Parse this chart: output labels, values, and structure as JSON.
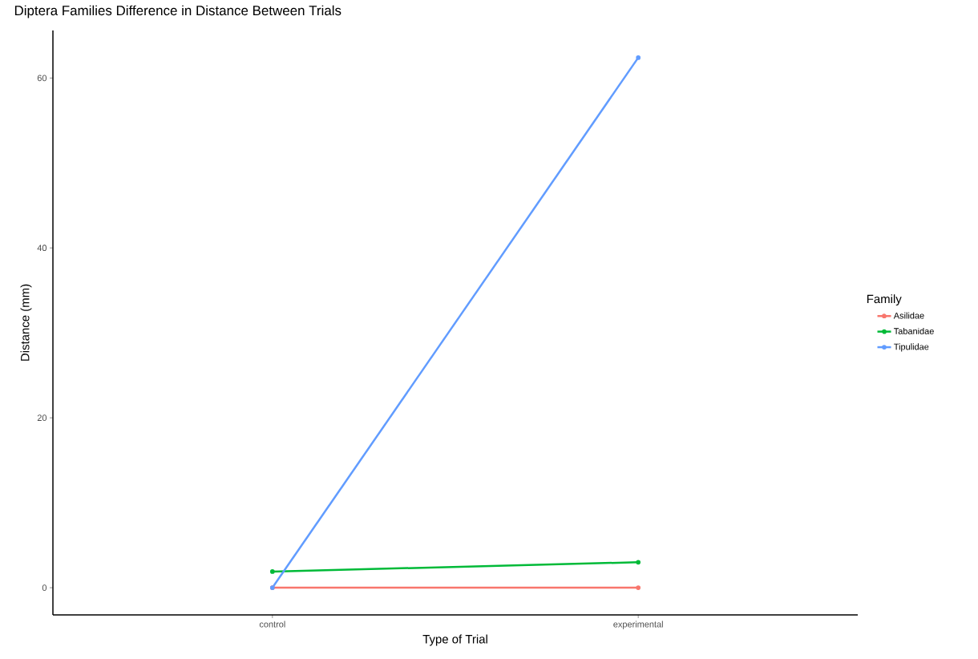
{
  "chart_data": {
    "type": "line",
    "title": "Diptera Families Difference in Distance Between Trials",
    "xlabel": "Type of Trial",
    "ylabel": "Distance (mm)",
    "legend_title": "Family",
    "categories": [
      "control",
      "experimental"
    ],
    "series": [
      {
        "name": "Asilidae",
        "color": "#f8766d",
        "values": [
          0,
          0
        ]
      },
      {
        "name": "Tabanidae",
        "color": "#00ba38",
        "values": [
          1.9,
          3.0
        ]
      },
      {
        "name": "Tipulidae",
        "color": "#619cff",
        "values": [
          0,
          62.4
        ]
      }
    ],
    "ylim": [
      -3.2,
      65.6
    ],
    "yticks": [
      0,
      20,
      40,
      60
    ],
    "grid": false,
    "legend": "right",
    "marker": "circle",
    "line_style": "solid"
  }
}
